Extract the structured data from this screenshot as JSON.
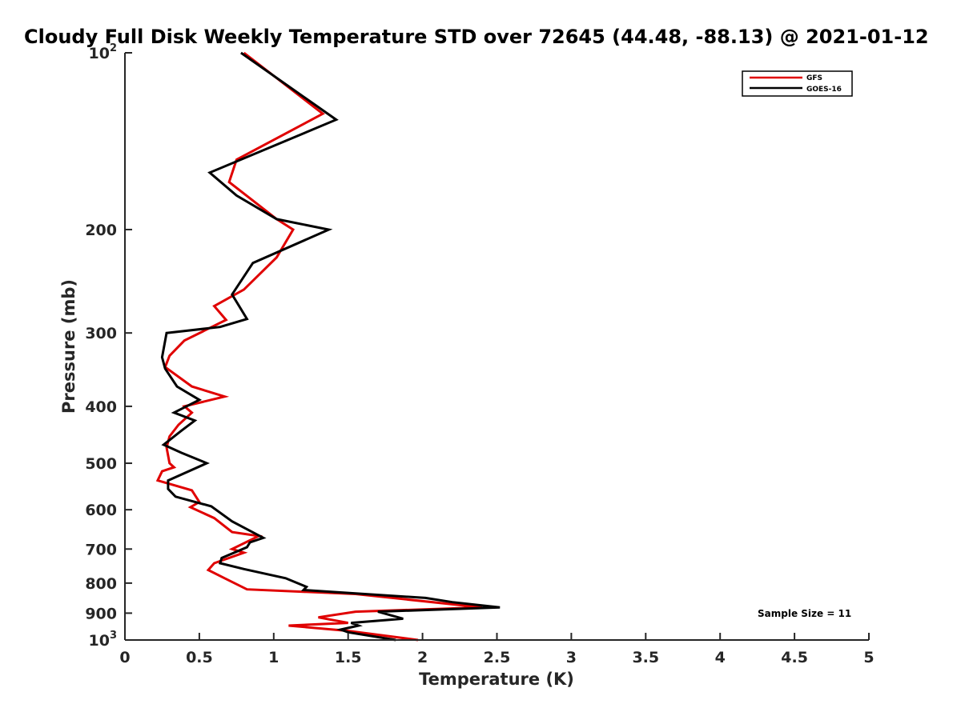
{
  "chart_data": {
    "type": "line",
    "title": "Cloudy Full Disk Weekly Temperature STD over 72645 (44.48, -88.13) @ 2021-01-12",
    "xlabel": "Temperature (K)",
    "ylabel": "Pressure (mb)",
    "xlim": [
      0,
      5
    ],
    "ylim": [
      1000,
      100
    ],
    "y_scale": "log",
    "y_reversed": true,
    "grid": false,
    "legend_position": "top-right",
    "x_ticks": [
      {
        "value": 0,
        "label": "0"
      },
      {
        "value": 0.5,
        "label": "0.5"
      },
      {
        "value": 1,
        "label": "1"
      },
      {
        "value": 1.5,
        "label": "1.5"
      },
      {
        "value": 2,
        "label": "2"
      },
      {
        "value": 2.5,
        "label": "2.5"
      },
      {
        "value": 3,
        "label": "3"
      },
      {
        "value": 3.5,
        "label": "3.5"
      },
      {
        "value": 4,
        "label": "4"
      },
      {
        "value": 4.5,
        "label": "4.5"
      },
      {
        "value": 5,
        "label": "5"
      }
    ],
    "y_ticks": [
      {
        "value": 100,
        "base": "10",
        "exp": "2"
      },
      {
        "value": 200,
        "label": "200"
      },
      {
        "value": 300,
        "label": "300"
      },
      {
        "value": 400,
        "label": "400"
      },
      {
        "value": 500,
        "label": "500"
      },
      {
        "value": 600,
        "label": "600"
      },
      {
        "value": 700,
        "label": "700"
      },
      {
        "value": 800,
        "label": "800"
      },
      {
        "value": 900,
        "label": "900"
      },
      {
        "value": 1000,
        "base": "10",
        "exp": "3"
      }
    ],
    "series": [
      {
        "name": "GFS",
        "color": "#e00000",
        "points": [
          [
            0.8,
            100
          ],
          [
            1.33,
            127
          ],
          [
            0.75,
            152
          ],
          [
            0.7,
            166
          ],
          [
            1.02,
            192
          ],
          [
            1.13,
            200
          ],
          [
            1.02,
            223
          ],
          [
            0.8,
            253
          ],
          [
            0.6,
            270
          ],
          [
            0.68,
            285
          ],
          [
            0.4,
            309
          ],
          [
            0.3,
            328
          ],
          [
            0.27,
            343
          ],
          [
            0.45,
            370
          ],
          [
            0.67,
            385
          ],
          [
            0.4,
            400
          ],
          [
            0.45,
            410
          ],
          [
            0.36,
            430
          ],
          [
            0.3,
            450
          ],
          [
            0.28,
            470
          ],
          [
            0.3,
            500
          ],
          [
            0.33,
            508
          ],
          [
            0.25,
            516
          ],
          [
            0.22,
            535
          ],
          [
            0.45,
            556
          ],
          [
            0.5,
            582
          ],
          [
            0.44,
            594
          ],
          [
            0.6,
            620
          ],
          [
            0.72,
            655
          ],
          [
            0.9,
            665
          ],
          [
            0.72,
            700
          ],
          [
            0.8,
            710
          ],
          [
            0.6,
            740
          ],
          [
            0.56,
            760
          ],
          [
            0.67,
            785
          ],
          [
            0.82,
            820
          ],
          [
            1.55,
            835
          ],
          [
            2.4,
            880
          ],
          [
            1.55,
            895
          ],
          [
            1.3,
            915
          ],
          [
            1.5,
            935
          ],
          [
            1.1,
            945
          ],
          [
            1.5,
            965
          ],
          [
            1.97,
            1000
          ]
        ]
      },
      {
        "name": "GOES-16",
        "color": "#000000",
        "points": [
          [
            0.78,
            100
          ],
          [
            1.42,
            130
          ],
          [
            0.57,
            160
          ],
          [
            0.75,
            175
          ],
          [
            1.02,
            192
          ],
          [
            1.37,
            200
          ],
          [
            0.86,
            228
          ],
          [
            0.72,
            258
          ],
          [
            0.82,
            284
          ],
          [
            0.64,
            293
          ],
          [
            0.28,
            300
          ],
          [
            0.25,
            330
          ],
          [
            0.27,
            345
          ],
          [
            0.35,
            370
          ],
          [
            0.5,
            390
          ],
          [
            0.33,
            410
          ],
          [
            0.47,
            423
          ],
          [
            0.38,
            440
          ],
          [
            0.26,
            465
          ],
          [
            0.38,
            480
          ],
          [
            0.55,
            500
          ],
          [
            0.29,
            535
          ],
          [
            0.29,
            553
          ],
          [
            0.34,
            570
          ],
          [
            0.58,
            592
          ],
          [
            0.72,
            628
          ],
          [
            0.93,
            670
          ],
          [
            0.84,
            682
          ],
          [
            0.82,
            695
          ],
          [
            0.65,
            725
          ],
          [
            0.64,
            740
          ],
          [
            0.8,
            757
          ],
          [
            1.08,
            785
          ],
          [
            1.22,
            812
          ],
          [
            1.2,
            822
          ],
          [
            2.02,
            848
          ],
          [
            2.2,
            862
          ],
          [
            2.52,
            880
          ],
          [
            1.7,
            895
          ],
          [
            1.87,
            920
          ],
          [
            1.52,
            935
          ],
          [
            1.57,
            945
          ],
          [
            1.45,
            960
          ],
          [
            1.5,
            970
          ],
          [
            1.82,
            1000
          ]
        ]
      }
    ],
    "annotations": [
      "Sample Size = 11"
    ]
  }
}
